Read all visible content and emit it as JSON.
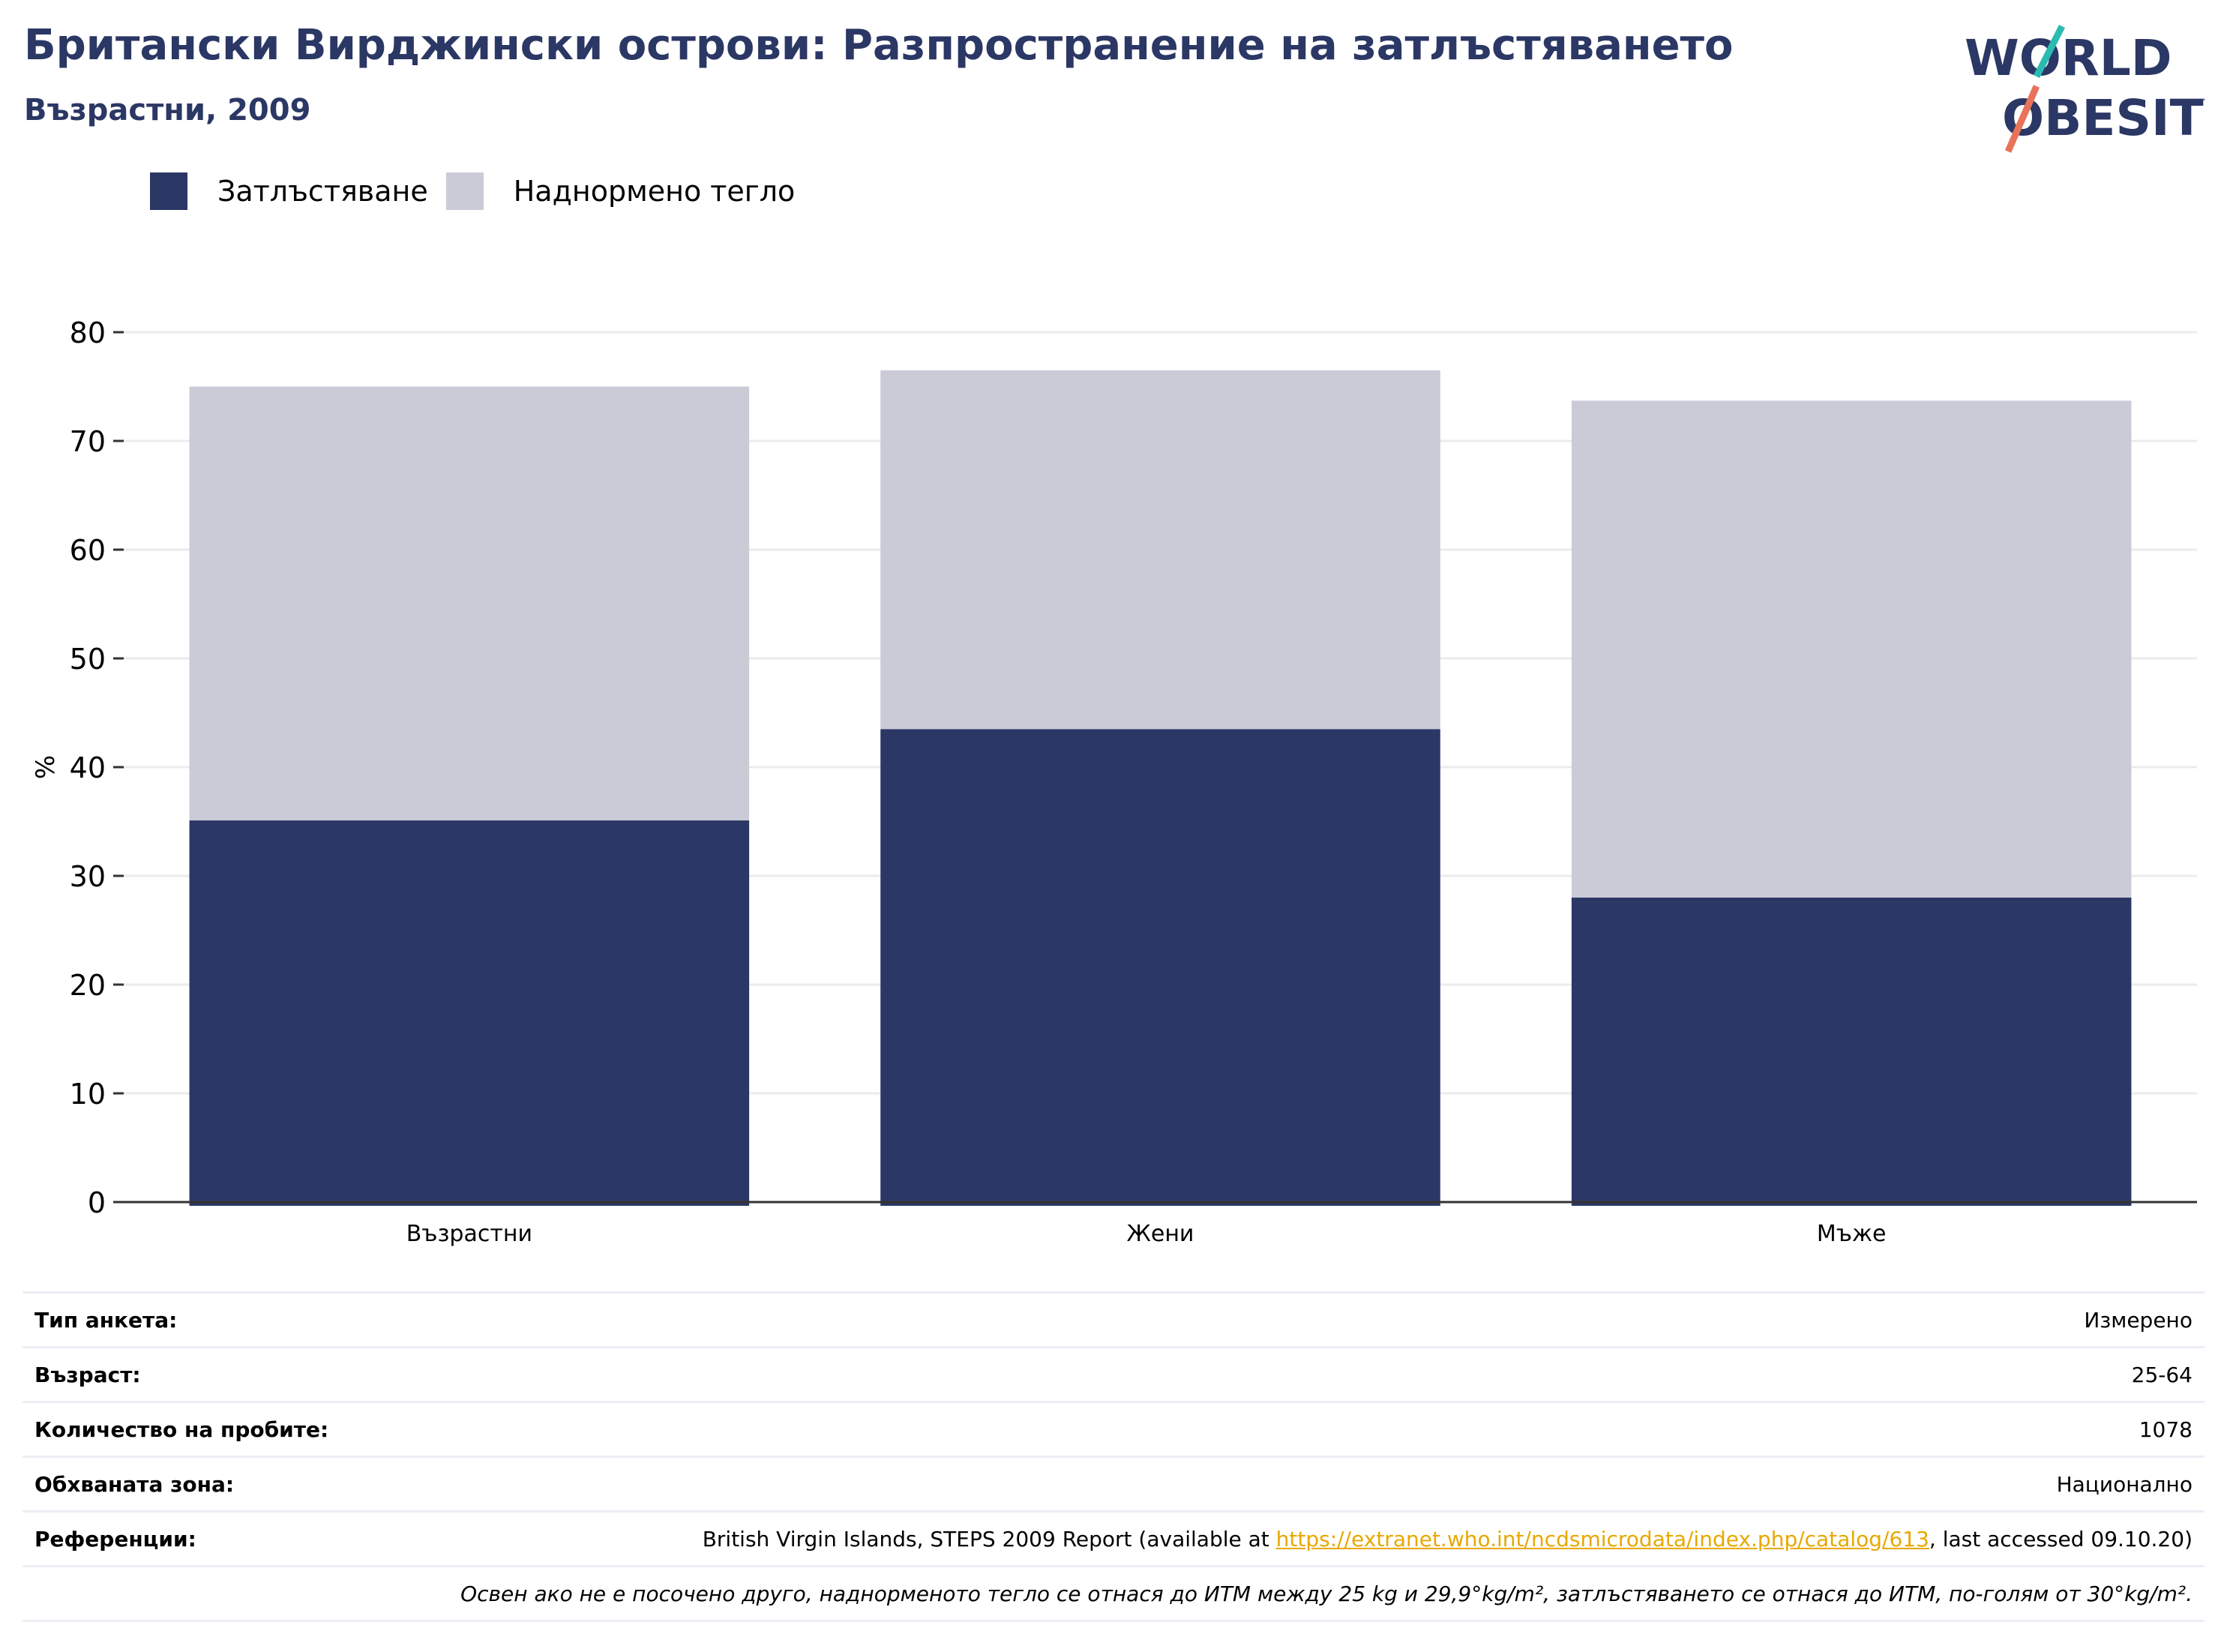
{
  "header": {
    "title": "Британски Вирджински острови: Разпространение на затлъстяването",
    "subtitle": "Възрастни, 2009"
  },
  "logo": {
    "line1": "WORLD",
    "line2": "OBESITY",
    "colors": {
      "text": "#2b3764",
      "slash_top": "#2bbbb0",
      "slash_bottom": "#e8735a"
    }
  },
  "chart_data": {
    "type": "bar",
    "stacked": true,
    "categories": [
      "Възрастни",
      "Жени",
      "Мъже"
    ],
    "series": [
      {
        "name": "Затлъстяване",
        "color": "#2b3764",
        "values": [
          35.1,
          43.5,
          28.0
        ]
      },
      {
        "name": "Наднормено тегло",
        "color": "#cacbd7",
        "values": [
          39.9,
          33.0,
          45.7
        ]
      }
    ],
    "ylabel": "%",
    "xlabel": "",
    "ylim": [
      0,
      80
    ],
    "yticks": [
      0,
      10,
      20,
      30,
      40,
      50,
      60,
      70,
      80
    ],
    "grid": true,
    "legend_position": "top-left"
  },
  "info": {
    "survey_type": {
      "label": "Тип анкета:",
      "value": "Измерено"
    },
    "age": {
      "label": "Възраст:",
      "value": "25-64"
    },
    "sample_size": {
      "label": "Количество на пробите:",
      "value": "1078"
    },
    "area": {
      "label": "Обхваната зона:",
      "value": "Национално"
    },
    "references": {
      "label": "Референции:",
      "prefix": "British Virgin Islands, STEPS 2009 Report (available at ",
      "link": "https://extranet.who.int/ncdsmicrodata/index.php/catalog/613",
      "suffix": ", last accessed 09.10.20)"
    },
    "note": "Освен ако не е посочено друго, наднорменото тегло се отнася до ИТМ между 25 kg и 29,9°kg/m², затлъстяването се отнася до ИТМ, по-голям от 30°kg/m²."
  }
}
